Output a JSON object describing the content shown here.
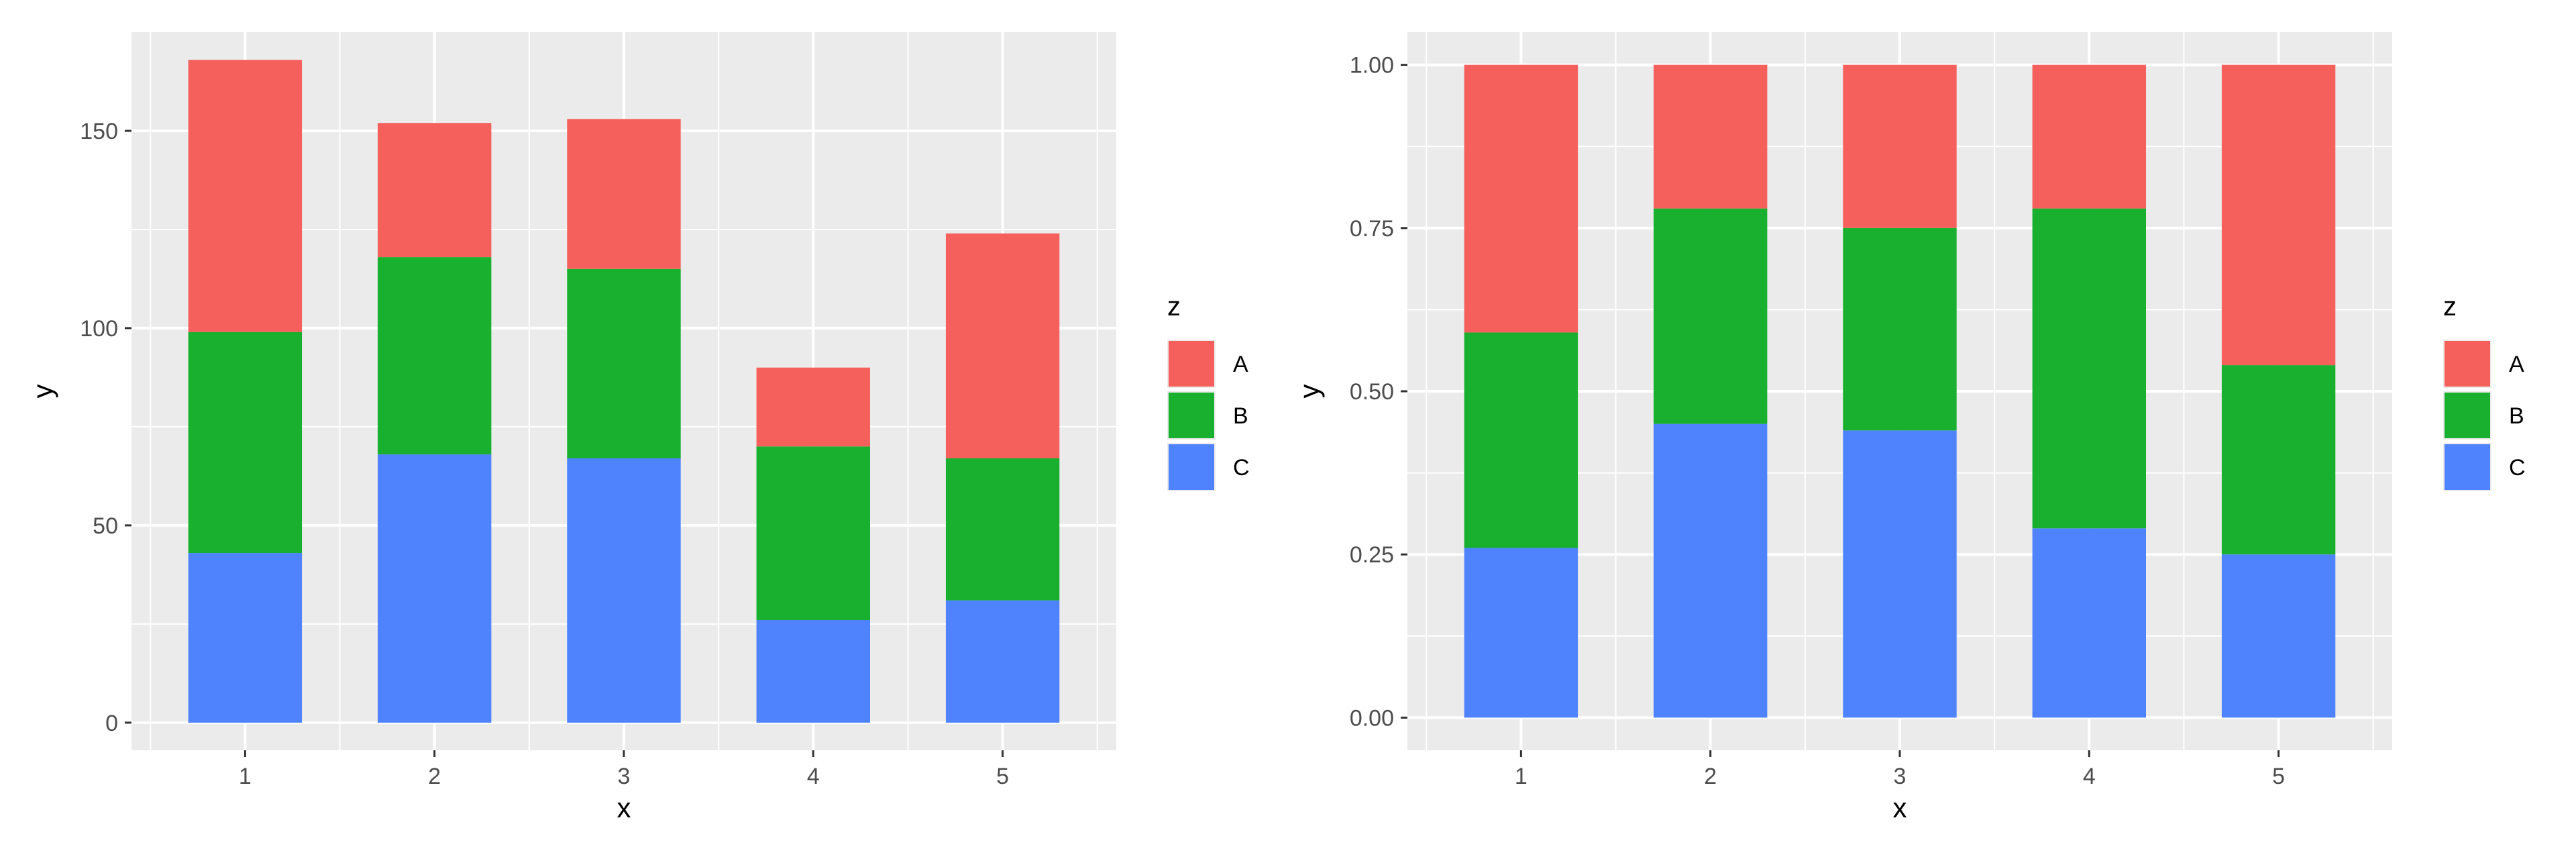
{
  "chart_data": [
    {
      "type": "bar",
      "stacked": true,
      "position": "stack",
      "categories": [
        "1",
        "2",
        "3",
        "4",
        "5"
      ],
      "series": [
        {
          "name": "C",
          "color": "#4f83fe",
          "values": [
            43,
            68,
            67,
            26,
            31
          ]
        },
        {
          "name": "B",
          "color": "#18b02e",
          "values": [
            56,
            50,
            48,
            44,
            36
          ]
        },
        {
          "name": "A",
          "color": "#f5605c",
          "values": [
            69,
            34,
            38,
            20,
            57
          ]
        }
      ],
      "xlabel": "x",
      "ylabel": "y",
      "ylim": [
        -7,
        175
      ],
      "yticks": [
        0,
        50,
        100,
        150
      ],
      "yticklabels": [
        "0",
        "50",
        "100",
        "150"
      ],
      "grid": true,
      "legend": {
        "title": "z",
        "placement": "right",
        "entries": [
          "A",
          "B",
          "C"
        ]
      }
    },
    {
      "type": "bar",
      "stacked": true,
      "position": "fill",
      "categories": [
        "1",
        "2",
        "3",
        "4",
        "5"
      ],
      "series": [
        {
          "name": "C",
          "color": "#4f83fe",
          "values": [
            0.26,
            0.45,
            0.44,
            0.29,
            0.25
          ]
        },
        {
          "name": "B",
          "color": "#18b02e",
          "values": [
            0.33,
            0.33,
            0.31,
            0.49,
            0.29
          ]
        },
        {
          "name": "A",
          "color": "#f5605c",
          "values": [
            0.41,
            0.22,
            0.25,
            0.22,
            0.46
          ]
        }
      ],
      "xlabel": "x",
      "ylabel": "y",
      "ylim": [
        -0.05,
        1.05
      ],
      "yticks": [
        0,
        0.25,
        0.5,
        0.75,
        1
      ],
      "yticklabels": [
        "0.00",
        "0.25",
        "0.50",
        "0.75",
        "1.00"
      ],
      "grid": true,
      "legend": {
        "title": "z",
        "placement": "right",
        "entries": [
          "A",
          "B",
          "C"
        ]
      }
    }
  ]
}
